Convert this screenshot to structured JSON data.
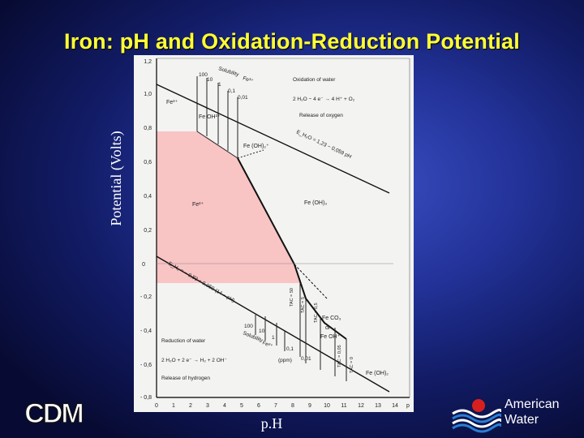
{
  "slide": {
    "title": "Iron: pH and Oxidation-Reduction Potential",
    "y_axis_label": "Potential (Volts)",
    "x_axis_label": "p.H"
  },
  "diagram": {
    "y_ticks": [
      "1,2",
      "1,0",
      "0,8",
      "0,6",
      "0,4",
      "0,2",
      "0",
      "- 0,2",
      "- 0,4",
      "- 0,6",
      "- 0,8"
    ],
    "x_ticks": [
      "0",
      "1",
      "2",
      "3",
      "4",
      "5",
      "6",
      "7",
      "8",
      "9",
      "10",
      "11",
      "12",
      "13",
      "14"
    ],
    "x_axis_end_label": "p",
    "regions": {
      "fe3": "Fe³⁺",
      "feoh2": "Fe OH²⁺",
      "feoh2plus": "Fe (OH)₂⁺",
      "fe2": "Fe²⁺",
      "feoh3": "Fe (OH)₃",
      "feco3": "Fe CO₃",
      "or": "or",
      "feoh_plus": "Fe OH⁺",
      "feoh2_low": "Fe (OH)₂"
    },
    "solubility_top": {
      "label_1": "Solubility",
      "label_2": "Fe³⁺",
      "values": [
        "100",
        "10",
        "1",
        "0,1",
        "0,01"
      ]
    },
    "solubility_bottom": {
      "label_1": "Solubility",
      "label_2": "Fe²⁺",
      "values": [
        "100",
        "10",
        "1",
        "0,1",
        "0,01"
      ],
      "unit": "(ppm)"
    },
    "oxidation_of_water": {
      "title": "Oxidation of water",
      "equation": "2 H₂O − 4 e⁻ → 4 H⁺ + O₂",
      "release": "Release of oxygen"
    },
    "o2_line_equation": "E_H₂O = 1,23 − 0,059 pH",
    "h2_line_equation": "E_H₂ = − 0,83 + 0,059 (14 − pH)",
    "reduction_of_water": {
      "title": "Reduction of water",
      "equation": "2 H₂O + 2 e⁻ → H₂ + 2 OH⁻",
      "release": "Release of hydrogen"
    },
    "tac_labels": [
      "TAC = 50",
      "TAC = 5",
      "TAC = 0,5",
      "TAC = 0,05",
      "TAC = 0"
    ]
  },
  "logos": {
    "left": "CDM",
    "right_line1": "American",
    "right_line2": "Water"
  },
  "colors": {
    "title": "#ffff33",
    "fe2_region": "#f9c4c4",
    "diagram_bg": "#f3f3f1"
  }
}
